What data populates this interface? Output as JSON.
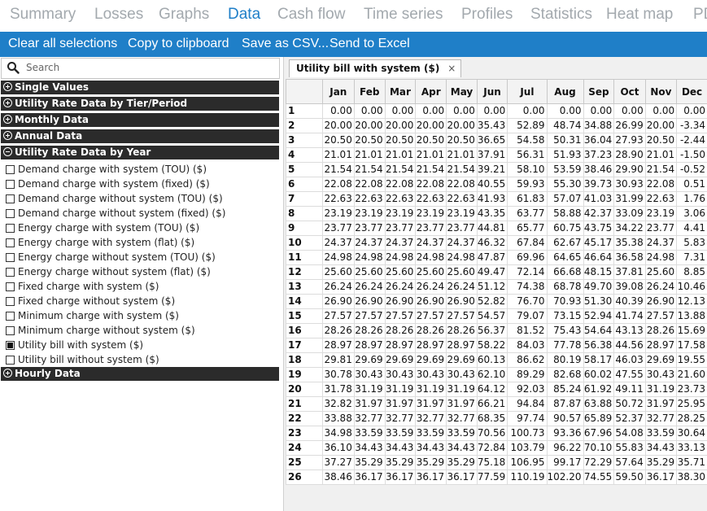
{
  "nav": {
    "tabs": [
      "Summary",
      "Losses",
      "Graphs",
      "Data",
      "Cash flow",
      "Time series",
      "Profiles",
      "Statistics",
      "Heat map",
      "PDF / CDF"
    ],
    "active_index": 3
  },
  "toolbar": {
    "clear": "Clear all selections",
    "copy": "Copy to clipboard",
    "save": "Save as CSV...",
    "excel": "Send to Excel"
  },
  "search": {
    "placeholder": "Search"
  },
  "groups": {
    "single_values": "Single Values",
    "utility_rate_tier": "Utility Rate Data by Tier/Period",
    "monthly": "Monthly Data",
    "annual": "Annual Data",
    "utility_rate_year": "Utility Rate Data by Year",
    "hourly": "Hourly Data"
  },
  "items": [
    {
      "label": "Demand charge with system (TOU) ($)",
      "checked": false
    },
    {
      "label": "Demand charge with system (fixed) ($)",
      "checked": false
    },
    {
      "label": "Demand charge without system (TOU) ($)",
      "checked": false
    },
    {
      "label": "Demand charge without system (fixed) ($)",
      "checked": false
    },
    {
      "label": "Energy charge with system (TOU) ($)",
      "checked": false
    },
    {
      "label": "Energy charge with system (flat) ($)",
      "checked": false
    },
    {
      "label": "Energy charge without system (TOU) ($)",
      "checked": false
    },
    {
      "label": "Energy charge without system (flat) ($)",
      "checked": false
    },
    {
      "label": "Fixed charge with system ($)",
      "checked": false
    },
    {
      "label": "Fixed charge without system ($)",
      "checked": false
    },
    {
      "label": "Minimum charge with system ($)",
      "checked": false
    },
    {
      "label": "Minimum charge without system ($)",
      "checked": false
    },
    {
      "label": "Utility bill with system ($)",
      "checked": true
    },
    {
      "label": "Utility bill without system ($)",
      "checked": false
    }
  ],
  "doc_tab": {
    "title": "Utility bill with system ($)",
    "close": "×"
  },
  "table": {
    "columns": [
      "Jan",
      "Feb",
      "Mar",
      "Apr",
      "May",
      "Jun",
      "Jul",
      "Aug",
      "Sep",
      "Oct",
      "Nov",
      "Dec"
    ],
    "rows": [
      [
        "1",
        "0.00",
        "0.00",
        "0.00",
        "0.00",
        "0.00",
        "0.00",
        "0.00",
        "0.00",
        "0.00",
        "0.00",
        "0.00",
        "0.00"
      ],
      [
        "2",
        "20.00",
        "20.00",
        "20.00",
        "20.00",
        "20.00",
        "35.43",
        "52.89",
        "48.74",
        "34.88",
        "26.99",
        "20.00",
        "-3.34"
      ],
      [
        "3",
        "20.50",
        "20.50",
        "20.50",
        "20.50",
        "20.50",
        "36.65",
        "54.58",
        "50.31",
        "36.04",
        "27.93",
        "20.50",
        "-2.44"
      ],
      [
        "4",
        "21.01",
        "21.01",
        "21.01",
        "21.01",
        "21.01",
        "37.91",
        "56.31",
        "51.93",
        "37.23",
        "28.90",
        "21.01",
        "-1.50"
      ],
      [
        "5",
        "21.54",
        "21.54",
        "21.54",
        "21.54",
        "21.54",
        "39.21",
        "58.10",
        "53.59",
        "38.46",
        "29.90",
        "21.54",
        "-0.52"
      ],
      [
        "6",
        "22.08",
        "22.08",
        "22.08",
        "22.08",
        "22.08",
        "40.55",
        "59.93",
        "55.30",
        "39.73",
        "30.93",
        "22.08",
        "0.51"
      ],
      [
        "7",
        "22.63",
        "22.63",
        "22.63",
        "22.63",
        "22.63",
        "41.93",
        "61.83",
        "57.07",
        "41.03",
        "31.99",
        "22.63",
        "1.76"
      ],
      [
        "8",
        "23.19",
        "23.19",
        "23.19",
        "23.19",
        "23.19",
        "43.35",
        "63.77",
        "58.88",
        "42.37",
        "33.09",
        "23.19",
        "3.06"
      ],
      [
        "9",
        "23.77",
        "23.77",
        "23.77",
        "23.77",
        "23.77",
        "44.81",
        "65.77",
        "60.75",
        "43.75",
        "34.22",
        "23.77",
        "4.41"
      ],
      [
        "10",
        "24.37",
        "24.37",
        "24.37",
        "24.37",
        "24.37",
        "46.32",
        "67.84",
        "62.67",
        "45.17",
        "35.38",
        "24.37",
        "5.83"
      ],
      [
        "11",
        "24.98",
        "24.98",
        "24.98",
        "24.98",
        "24.98",
        "47.87",
        "69.96",
        "64.65",
        "46.64",
        "36.58",
        "24.98",
        "7.31"
      ],
      [
        "12",
        "25.60",
        "25.60",
        "25.60",
        "25.60",
        "25.60",
        "49.47",
        "72.14",
        "66.68",
        "48.15",
        "37.81",
        "25.60",
        "8.85"
      ],
      [
        "13",
        "26.24",
        "26.24",
        "26.24",
        "26.24",
        "26.24",
        "51.12",
        "74.38",
        "68.78",
        "49.70",
        "39.08",
        "26.24",
        "10.46"
      ],
      [
        "14",
        "26.90",
        "26.90",
        "26.90",
        "26.90",
        "26.90",
        "52.82",
        "76.70",
        "70.93",
        "51.30",
        "40.39",
        "26.90",
        "12.13"
      ],
      [
        "15",
        "27.57",
        "27.57",
        "27.57",
        "27.57",
        "27.57",
        "54.57",
        "79.07",
        "73.15",
        "52.94",
        "41.74",
        "27.57",
        "13.88"
      ],
      [
        "16",
        "28.26",
        "28.26",
        "28.26",
        "28.26",
        "28.26",
        "56.37",
        "81.52",
        "75.43",
        "54.64",
        "43.13",
        "28.26",
        "15.69"
      ],
      [
        "17",
        "28.97",
        "28.97",
        "28.97",
        "28.97",
        "28.97",
        "58.22",
        "84.03",
        "77.78",
        "56.38",
        "44.56",
        "28.97",
        "17.58"
      ],
      [
        "18",
        "29.81",
        "29.69",
        "29.69",
        "29.69",
        "29.69",
        "60.13",
        "86.62",
        "80.19",
        "58.17",
        "46.03",
        "29.69",
        "19.55"
      ],
      [
        "19",
        "30.78",
        "30.43",
        "30.43",
        "30.43",
        "30.43",
        "62.10",
        "89.29",
        "82.68",
        "60.02",
        "47.55",
        "30.43",
        "21.60"
      ],
      [
        "20",
        "31.78",
        "31.19",
        "31.19",
        "31.19",
        "31.19",
        "64.12",
        "92.03",
        "85.24",
        "61.92",
        "49.11",
        "31.19",
        "23.73"
      ],
      [
        "21",
        "32.82",
        "31.97",
        "31.97",
        "31.97",
        "31.97",
        "66.21",
        "94.84",
        "87.87",
        "63.88",
        "50.72",
        "31.97",
        "25.95"
      ],
      [
        "22",
        "33.88",
        "32.77",
        "32.77",
        "32.77",
        "32.77",
        "68.35",
        "97.74",
        "90.57",
        "65.89",
        "52.37",
        "32.77",
        "28.25"
      ],
      [
        "23",
        "34.98",
        "33.59",
        "33.59",
        "33.59",
        "33.59",
        "70.56",
        "100.73",
        "93.36",
        "67.96",
        "54.08",
        "33.59",
        "30.64"
      ],
      [
        "24",
        "36.10",
        "34.43",
        "34.43",
        "34.43",
        "34.43",
        "72.84",
        "103.79",
        "96.22",
        "70.10",
        "55.83",
        "34.43",
        "33.13"
      ],
      [
        "25",
        "37.27",
        "35.29",
        "35.29",
        "35.29",
        "35.29",
        "75.18",
        "106.95",
        "99.17",
        "72.29",
        "57.64",
        "35.29",
        "35.71"
      ],
      [
        "26",
        "38.46",
        "36.17",
        "36.17",
        "36.17",
        "36.17",
        "77.59",
        "110.19",
        "102.20",
        "74.55",
        "59.50",
        "36.17",
        "38.30"
      ]
    ]
  }
}
